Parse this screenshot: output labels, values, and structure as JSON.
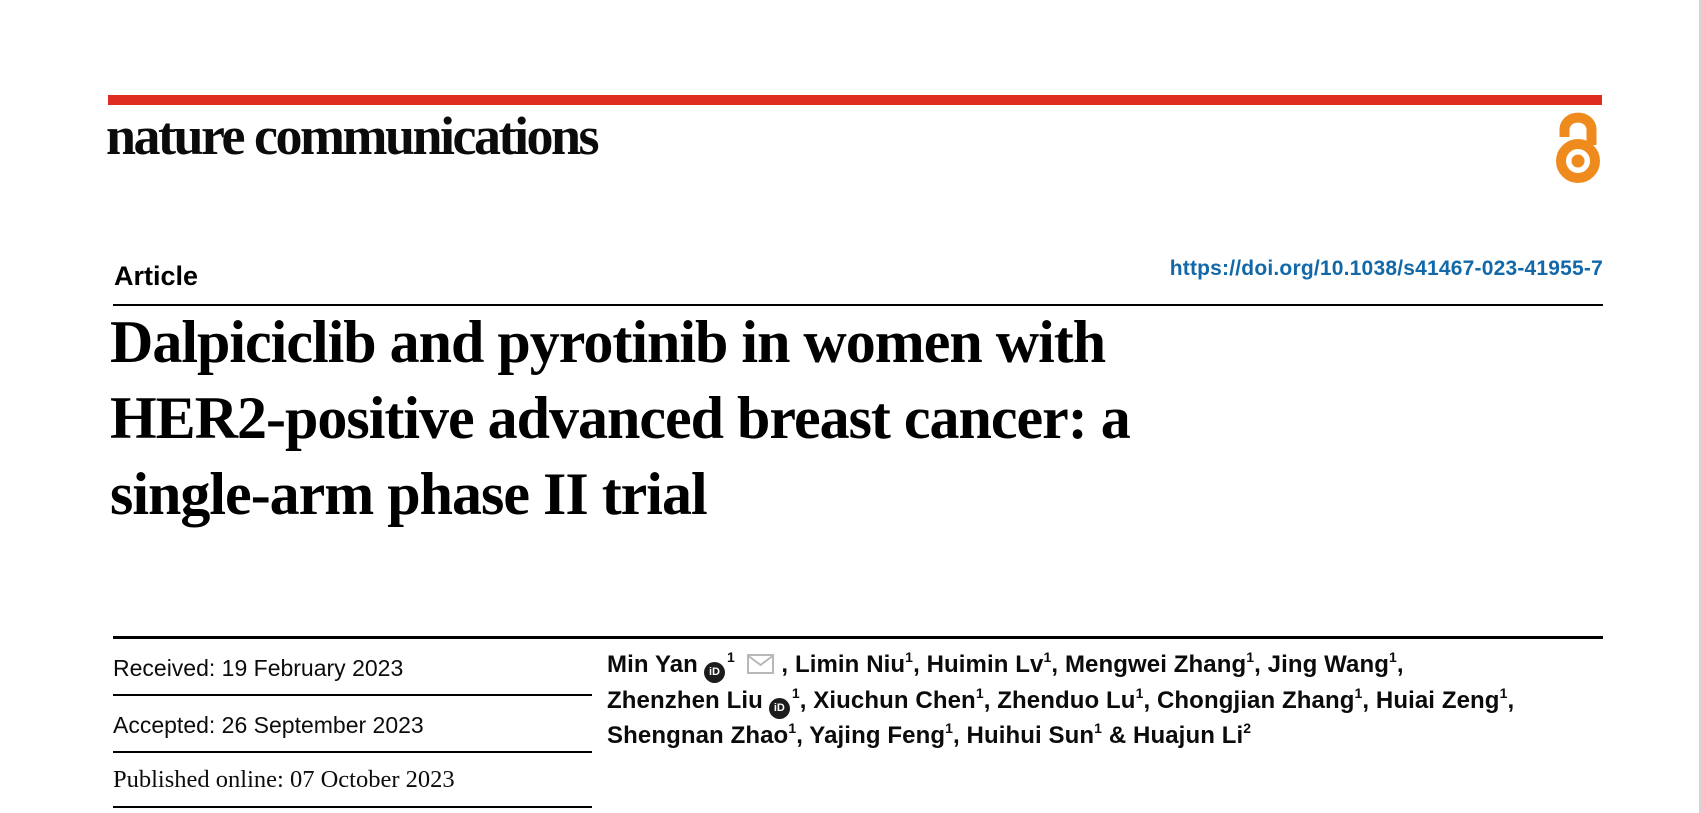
{
  "masthead": {
    "journal_wordmark": "nature communications",
    "bar_color": "#e02d22",
    "open_access_color": "#ef8b1d"
  },
  "header": {
    "article_type": "Article",
    "doi": "https://doi.org/10.1038/s41467-023-41955-7",
    "doi_color": "#1268a8"
  },
  "title": {
    "lines": [
      "Dalpiciclib and pyrotinib in women with",
      "HER2-positive advanced breast cancer: a",
      "single-arm phase II trial"
    ]
  },
  "timeline": {
    "received": "Received: 19 February 2023",
    "accepted": "Accepted: 26 September 2023",
    "published": "Published online: 07 October 2023"
  },
  "icons": {
    "orcid_label": "iD",
    "orcid_name": "orcid-icon",
    "mail_name": "email-icon",
    "open_access_name": "open-access-padlock-icon"
  },
  "authors": {
    "lines": [
      [
        {
          "t": "text",
          "v": "Min Yan"
        },
        {
          "t": "orcid"
        },
        {
          "t": "sup",
          "v": "1"
        },
        {
          "t": "mail"
        },
        {
          "t": "text",
          "v": ", Limin Niu"
        },
        {
          "t": "sup",
          "v": "1"
        },
        {
          "t": "text",
          "v": ", Huimin Lv"
        },
        {
          "t": "sup",
          "v": "1"
        },
        {
          "t": "text",
          "v": ", Mengwei Zhang"
        },
        {
          "t": "sup",
          "v": "1"
        },
        {
          "t": "text",
          "v": ", Jing Wang"
        },
        {
          "t": "sup",
          "v": "1"
        },
        {
          "t": "text",
          "v": ","
        }
      ],
      [
        {
          "t": "text",
          "v": "Zhenzhen Liu"
        },
        {
          "t": "orcid"
        },
        {
          "t": "sup",
          "v": "1"
        },
        {
          "t": "text",
          "v": ", Xiuchun Chen"
        },
        {
          "t": "sup",
          "v": "1"
        },
        {
          "t": "text",
          "v": ", Zhenduo Lu"
        },
        {
          "t": "sup",
          "v": "1"
        },
        {
          "t": "text",
          "v": ", Chongjian Zhang"
        },
        {
          "t": "sup",
          "v": "1"
        },
        {
          "t": "text",
          "v": ", Huiai Zeng"
        },
        {
          "t": "sup",
          "v": "1"
        },
        {
          "t": "text",
          "v": ","
        }
      ],
      [
        {
          "t": "text",
          "v": "Shengnan Zhao"
        },
        {
          "t": "sup",
          "v": "1"
        },
        {
          "t": "text",
          "v": ", Yajing Feng"
        },
        {
          "t": "sup",
          "v": "1"
        },
        {
          "t": "text",
          "v": ", Huihui Sun"
        },
        {
          "t": "sup",
          "v": "1"
        },
        {
          "t": "text",
          "v": " & Huajun Li"
        },
        {
          "t": "sup",
          "v": "2"
        }
      ]
    ]
  }
}
